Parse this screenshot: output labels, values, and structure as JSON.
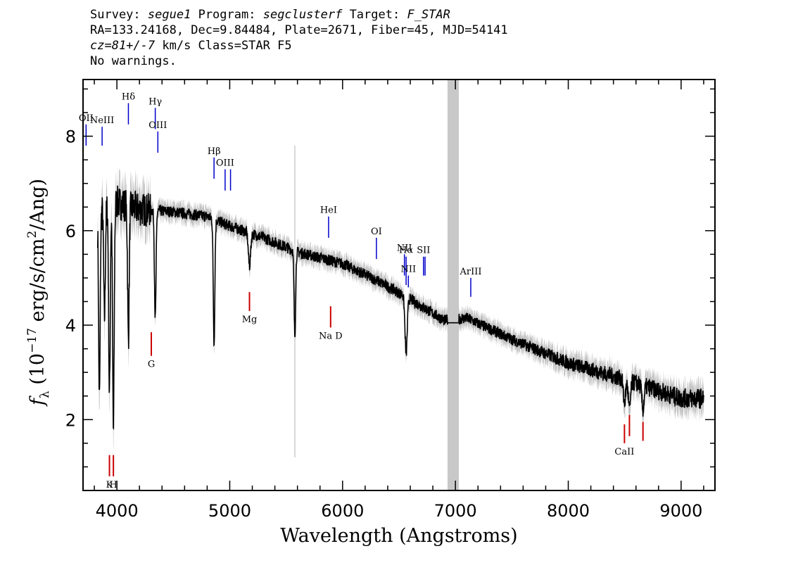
{
  "header": {
    "line1": {
      "survey_label": "Survey:",
      "survey": "segue1",
      "program_label": "Program:",
      "program": "segclusterf",
      "target_label": "Target:",
      "target": "F_STAR"
    },
    "line2": "RA=133.24168, Dec=9.84484, Plate=2671, Fiber=45, MJD=54141",
    "line3": {
      "cz": "cz=81+/-7",
      "rest": " km/s Class=STAR F5"
    },
    "line4": "No warnings."
  },
  "colors": {
    "flux": "#000000",
    "error": "#c0c0c0",
    "emission": "#0000cc",
    "absorption": "#cc0000",
    "band": "#c8c8c8"
  },
  "chart_data": {
    "type": "line",
    "xlabel": "Wavelength (Angstroms)",
    "ylabel": "f_λ (10^-17 erg/s/cm^2/Ang)",
    "xlim": [
      3700,
      9300
    ],
    "ylim": [
      0.5,
      9.2
    ],
    "x_ticks": [
      "4000",
      "5000",
      "6000",
      "7000",
      "8000",
      "9000"
    ],
    "y_ticks": [
      "2",
      "4",
      "6",
      "8"
    ],
    "masked_band": [
      6930,
      7030
    ],
    "continuum": [
      [
        3830,
        6.4
      ],
      [
        4000,
        6.6
      ],
      [
        4200,
        6.45
      ],
      [
        4500,
        6.4
      ],
      [
        4800,
        6.3
      ],
      [
        5000,
        6.1
      ],
      [
        5300,
        5.85
      ],
      [
        5600,
        5.55
      ],
      [
        6000,
        5.3
      ],
      [
        6300,
        4.95
      ],
      [
        6600,
        4.55
      ],
      [
        6900,
        4.1
      ],
      [
        7100,
        4.15
      ],
      [
        7500,
        3.7
      ],
      [
        8000,
        3.2
      ],
      [
        8500,
        2.85
      ],
      [
        9000,
        2.45
      ],
      [
        9200,
        2.45
      ]
    ],
    "absorption_features": [
      {
        "x": 3845,
        "depth": 4.0
      },
      {
        "x": 3890,
        "depth": 2.3
      },
      {
        "x": 3934,
        "depth": 4.0
      },
      {
        "x": 3969,
        "depth": 4.8
      },
      {
        "x": 4102,
        "depth": 2.8
      },
      {
        "x": 4340,
        "depth": 2.3
      },
      {
        "x": 4861,
        "depth": 2.6
      },
      {
        "x": 5175,
        "depth": 0.7
      },
      {
        "x": 5577,
        "depth": 1.8
      },
      {
        "x": 6563,
        "depth": 1.2
      },
      {
        "x": 8498,
        "depth": 0.5
      },
      {
        "x": 8542,
        "depth": 0.6
      },
      {
        "x": 8662,
        "depth": 0.5
      }
    ],
    "emission_lines": [
      {
        "label": "OII",
        "x": 3727,
        "y_top": 8.25,
        "y_bottom": 7.8
      },
      {
        "label": "NeIII",
        "x": 3869,
        "y_top": 8.2,
        "y_bottom": 7.8
      },
      {
        "label": "Hδ",
        "x": 4102,
        "y_top": 8.7,
        "y_bottom": 8.25
      },
      {
        "label": "Hγ",
        "x": 4340,
        "y_top": 8.6,
        "y_bottom": 8.15
      },
      {
        "label": "OIII",
        "x": 4363,
        "y_top": 8.1,
        "y_bottom": 7.65
      },
      {
        "label": "Hβ",
        "x": 4861,
        "y_top": 7.55,
        "y_bottom": 7.1
      },
      {
        "label": "OIII",
        "x": 4959,
        "y_top": 7.3,
        "y_bottom": 6.85
      },
      {
        "label": "",
        "x": 5007,
        "y_top": 7.3,
        "y_bottom": 6.85
      },
      {
        "label": "HeI",
        "x": 5876,
        "y_top": 6.3,
        "y_bottom": 5.85
      },
      {
        "label": "OI",
        "x": 6300,
        "y_top": 5.85,
        "y_bottom": 5.4
      },
      {
        "label": "NII",
        "x": 6548,
        "y_top": 5.5,
        "y_bottom": 5.05
      },
      {
        "label": "Hα",
        "x": 6563,
        "y_top": 5.45,
        "y_bottom": 4.85
      },
      {
        "label": "NII",
        "x": 6583,
        "y_top": 5.05,
        "y_bottom": 4.8
      },
      {
        "label": "SII",
        "x": 6717,
        "y_top": 5.45,
        "y_bottom": 5.05
      },
      {
        "label": "",
        "x": 6731,
        "y_top": 5.45,
        "y_bottom": 5.05
      },
      {
        "label": "ArIII",
        "x": 7136,
        "y_top": 5.0,
        "y_bottom": 4.6
      }
    ],
    "absorption_lines": [
      {
        "label": "K",
        "x": 3934,
        "y_top": 1.25,
        "y_bottom": 0.8
      },
      {
        "label": "H",
        "x": 3969,
        "y_top": 1.25,
        "y_bottom": 0.8
      },
      {
        "label": "G",
        "x": 4305,
        "y_top": 3.85,
        "y_bottom": 3.35
      },
      {
        "label": "Mg",
        "x": 5175,
        "y_top": 4.7,
        "y_bottom": 4.3
      },
      {
        "label": "Na D",
        "x": 5894,
        "y_top": 4.4,
        "y_bottom": 3.95
      },
      {
        "label": "CaII",
        "x": 8498,
        "y_top": 1.9,
        "y_bottom": 1.5
      },
      {
        "label": "",
        "x": 8542,
        "y_top": 2.1,
        "y_bottom": 1.65
      },
      {
        "label": "",
        "x": 8662,
        "y_top": 1.95,
        "y_bottom": 1.55
      }
    ]
  }
}
